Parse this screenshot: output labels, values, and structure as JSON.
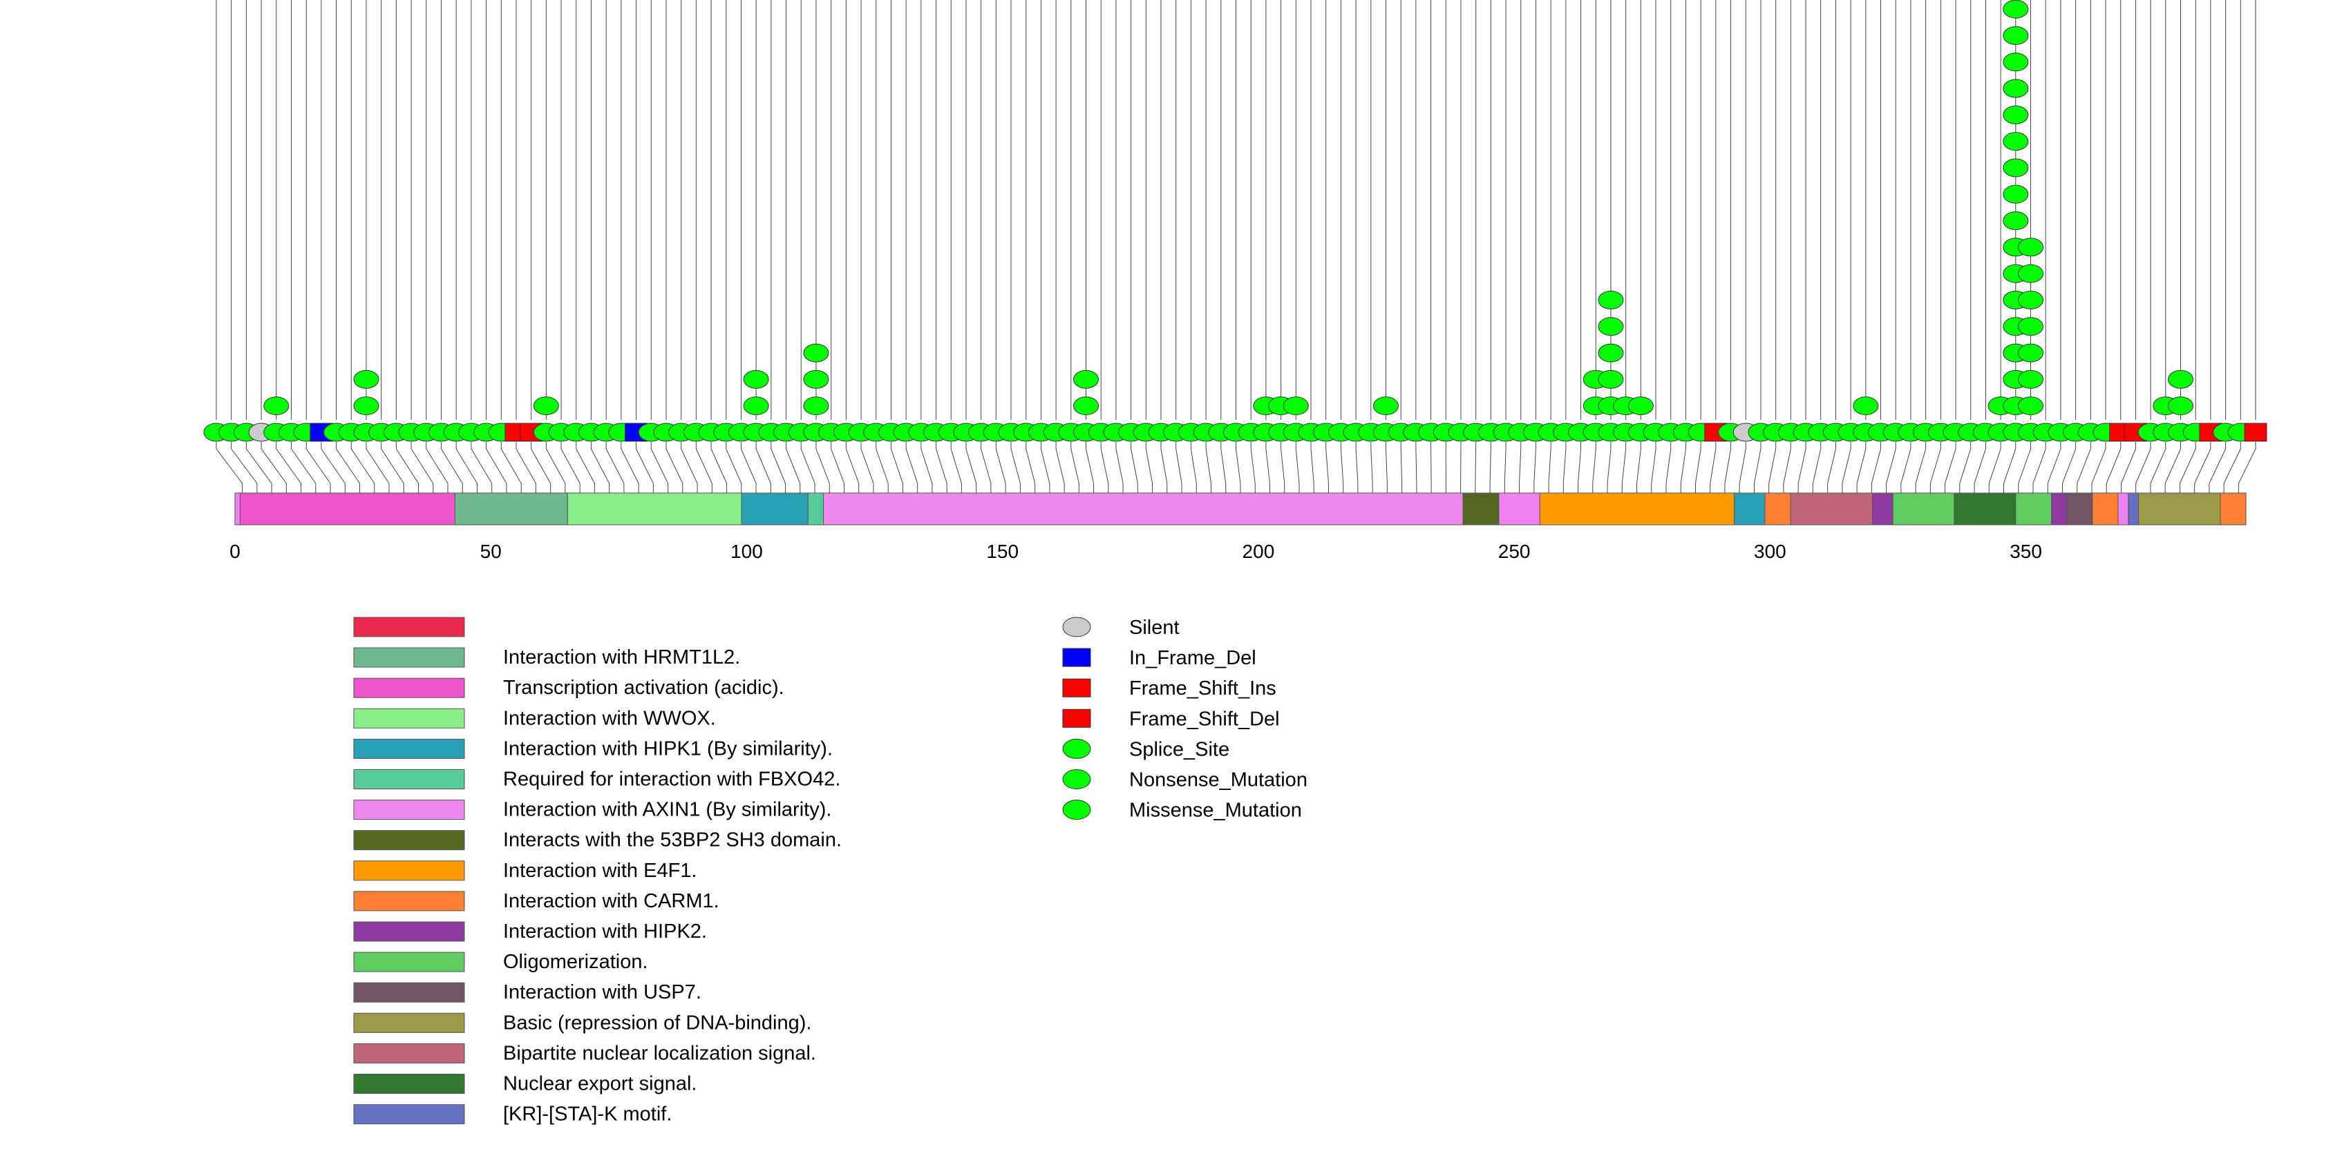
{
  "colors": {
    "stem": "#444444",
    "protein_track": "#ee82ee",
    "mutation_green": "#00ff00",
    "silent_gray": "#cccccc",
    "inframe_blue": "#0000ff",
    "frameshift_red": "#ff0000"
  },
  "chart_data": {
    "type": "lollipop",
    "title": "",
    "xlabel": "",
    "ylabel": "",
    "xlim": [
      0,
      393
    ],
    "x_ticks": [
      0,
      50,
      100,
      150,
      200,
      250,
      300,
      350
    ],
    "protein_length": 393,
    "domains": [
      {
        "name": "Transcription activation (acidic).",
        "start": 1,
        "end": 43,
        "color": "#ee55cc"
      },
      {
        "name": "Interaction with HRMT1L2.",
        "start": 43,
        "end": 65,
        "color": "#70b890"
      },
      {
        "name": "Interaction with WWOX.",
        "start": 65,
        "end": 99,
        "color": "#88ee88"
      },
      {
        "name": "Interaction with HIPK1 (By similarity).",
        "start": 99,
        "end": 112,
        "color": "#2aa0b4"
      },
      {
        "name": "Required for interaction with FBXO42.",
        "start": 112,
        "end": 115,
        "color": "#55cc99"
      },
      {
        "name": "Interaction with AXIN1 (By similarity).",
        "start": 115,
        "end": 240,
        "color": "#ee88ee"
      },
      {
        "name": "Interacts with the 53BP2 SH3 domain.",
        "start": 240,
        "end": 247,
        "color": "#556622"
      },
      {
        "name": "Interaction with E4F1.",
        "start": 255,
        "end": 293,
        "color": "#ff9900"
      },
      {
        "name": "Interaction with HIPK1 (By similarity).",
        "start": 293,
        "end": 299,
        "color": "#2aa0b4"
      },
      {
        "name": "Interaction with CARM1.",
        "start": 299,
        "end": 304,
        "color": "#ff8033"
      },
      {
        "name": "Bipartite nuclear localization signal.",
        "start": 304,
        "end": 320,
        "color": "#c0657a"
      },
      {
        "name": "Interaction with HIPK2.",
        "start": 320,
        "end": 324,
        "color": "#8e3a9e"
      },
      {
        "name": "Oligomerization.",
        "start": 324,
        "end": 336,
        "color": "#5fcc5f"
      },
      {
        "name": "Nuclear export signal.",
        "start": 336,
        "end": 348,
        "color": "#337733"
      },
      {
        "name": "Oligomerization.",
        "start": 348,
        "end": 355,
        "color": "#5fcc5f"
      },
      {
        "name": "Interaction with HIPK2.",
        "start": 355,
        "end": 358,
        "color": "#8e3a9e"
      },
      {
        "name": "Interaction with USP7.",
        "start": 358,
        "end": 363,
        "color": "#735566"
      },
      {
        "name": "Interaction with CARM1.",
        "start": 363,
        "end": 368,
        "color": "#ff8033"
      },
      {
        "name": "[KR]-[STA]-K motif.",
        "start": 370,
        "end": 372,
        "color": "#6670c0"
      },
      {
        "name": "Basic (repression of DNA-binding).",
        "start": 372,
        "end": 388,
        "color": "#9a9a48"
      },
      {
        "name": "Interaction with CARM1.",
        "start": 388,
        "end": 393,
        "color": "#ff8033"
      }
    ],
    "column_counts": [
      1,
      1,
      1,
      1,
      2,
      1,
      1,
      1,
      1,
      1,
      3,
      1,
      1,
      1,
      1,
      1,
      1,
      1,
      1,
      1,
      1,
      1,
      2,
      1,
      1,
      1,
      1,
      1,
      1,
      1,
      1,
      1,
      1,
      1,
      1,
      1,
      3,
      1,
      1,
      1,
      4,
      1,
      1,
      1,
      1,
      1,
      1,
      1,
      1,
      1,
      1,
      1,
      1,
      1,
      1,
      1,
      1,
      1,
      3,
      1,
      1,
      1,
      1,
      1,
      1,
      1,
      1,
      1,
      1,
      1,
      2,
      2,
      2,
      1,
      1,
      1,
      1,
      1,
      2,
      1,
      1,
      1,
      1,
      1,
      1,
      1,
      1,
      1,
      1,
      1,
      1,
      1,
      3,
      6,
      2,
      2,
      1,
      1,
      1,
      1,
      1,
      1,
      1,
      1,
      1,
      1,
      1,
      1,
      1,
      1,
      2,
      1,
      1,
      1,
      1,
      1,
      1,
      1,
      1,
      2,
      17,
      8,
      1,
      1,
      1,
      1,
      1,
      1,
      1,
      1,
      2,
      3,
      1,
      1,
      1,
      1,
      1
    ],
    "column_types": [
      "Missense_Mutation",
      "Missense_Mutation",
      "Missense_Mutation",
      "Silent",
      "Missense_Mutation",
      "Missense_Mutation",
      "Missense_Mutation",
      "In_Frame_Del",
      "Missense_Mutation",
      "Missense_Mutation",
      "Missense_Mutation",
      "Missense_Mutation",
      "Missense_Mutation",
      "Missense_Mutation",
      "Missense_Mutation",
      "Missense_Mutation",
      "Missense_Mutation",
      "Missense_Mutation",
      "Missense_Mutation",
      "Missense_Mutation",
      "Frame_Shift_Del",
      "Frame_Shift_Ins",
      "Missense_Mutation",
      "Missense_Mutation",
      "Missense_Mutation",
      "Missense_Mutation",
      "Missense_Mutation",
      "Missense_Mutation",
      "In_Frame_Del",
      "Missense_Mutation",
      "Missense_Mutation",
      "Missense_Mutation",
      "Missense_Mutation",
      "Missense_Mutation",
      "Missense_Mutation",
      "Missense_Mutation",
      "Missense_Mutation",
      "Missense_Mutation",
      "Missense_Mutation",
      "Missense_Mutation",
      "Missense_Mutation",
      "Missense_Mutation",
      "Missense_Mutation",
      "Missense_Mutation",
      "Missense_Mutation",
      "Missense_Mutation",
      "Missense_Mutation",
      "Missense_Mutation",
      "Missense_Mutation",
      "Missense_Mutation",
      "Missense_Mutation",
      "Missense_Mutation",
      "Missense_Mutation",
      "Missense_Mutation",
      "Missense_Mutation",
      "Missense_Mutation",
      "Missense_Mutation",
      "Missense_Mutation",
      "Missense_Mutation",
      "Missense_Mutation",
      "Missense_Mutation",
      "Missense_Mutation",
      "Missense_Mutation",
      "Missense_Mutation",
      "Missense_Mutation",
      "Missense_Mutation",
      "Missense_Mutation",
      "Missense_Mutation",
      "Missense_Mutation",
      "Missense_Mutation",
      "Missense_Mutation",
      "Missense_Mutation",
      "Missense_Mutation",
      "Missense_Mutation",
      "Missense_Mutation",
      "Missense_Mutation",
      "Missense_Mutation",
      "Missense_Mutation",
      "Missense_Mutation",
      "Missense_Mutation",
      "Missense_Mutation",
      "Missense_Mutation",
      "Missense_Mutation",
      "Missense_Mutation",
      "Missense_Mutation",
      "Missense_Mutation",
      "Missense_Mutation",
      "Missense_Mutation",
      "Missense_Mutation",
      "Missense_Mutation",
      "Missense_Mutation",
      "Missense_Mutation",
      "Missense_Mutation",
      "Missense_Mutation",
      "Missense_Mutation",
      "Missense_Mutation",
      "Missense_Mutation",
      "Missense_Mutation",
      "Missense_Mutation",
      "Missense_Mutation",
      "Frame_Shift_Del",
      "Missense_Mutation",
      "Silent",
      "Missense_Mutation",
      "Missense_Mutation",
      "Missense_Mutation",
      "Missense_Mutation",
      "Missense_Mutation",
      "Missense_Mutation",
      "Missense_Mutation",
      "Missense_Mutation",
      "Missense_Mutation",
      "Missense_Mutation",
      "Missense_Mutation",
      "Missense_Mutation",
      "Missense_Mutation",
      "Missense_Mutation",
      "Missense_Mutation",
      "Missense_Mutation",
      "Missense_Mutation",
      "Missense_Mutation",
      "Missense_Mutation",
      "Missense_Mutation",
      "Missense_Mutation",
      "Missense_Mutation",
      "Missense_Mutation",
      "Missense_Mutation",
      "Frame_Shift_Del",
      "Frame_Shift_Ins",
      "Missense_Mutation",
      "Missense_Mutation",
      "Missense_Mutation",
      "Missense_Mutation",
      "Frame_Shift_Del",
      "Missense_Mutation",
      "Missense_Mutation",
      "Frame_Shift_Del"
    ],
    "domain_legend": [
      {
        "label": "",
        "color": "#e8284a"
      },
      {
        "label": "Interaction with HRMT1L2.",
        "color": "#70b890"
      },
      {
        "label": "Transcription activation (acidic).",
        "color": "#ee55cc"
      },
      {
        "label": "Interaction with WWOX.",
        "color": "#88ee88"
      },
      {
        "label": "Interaction with HIPK1 (By similarity).",
        "color": "#2aa0b4"
      },
      {
        "label": "Required for interaction with FBXO42.",
        "color": "#55cc99"
      },
      {
        "label": "Interaction with AXIN1 (By similarity).",
        "color": "#ee88ee"
      },
      {
        "label": "Interacts with the 53BP2 SH3 domain.",
        "color": "#556622"
      },
      {
        "label": "Interaction with E4F1.",
        "color": "#ff9900"
      },
      {
        "label": "Interaction with CARM1.",
        "color": "#ff8033"
      },
      {
        "label": "Interaction with HIPK2.",
        "color": "#8e3a9e"
      },
      {
        "label": "Oligomerization.",
        "color": "#5fcc5f"
      },
      {
        "label": "Interaction with USP7.",
        "color": "#735566"
      },
      {
        "label": "Basic (repression of DNA-binding).",
        "color": "#9a9a48"
      },
      {
        "label": "Bipartite nuclear localization signal.",
        "color": "#c0657a"
      },
      {
        "label": "Nuclear export signal.",
        "color": "#337733"
      },
      {
        "label": "[KR]-[STA]-K motif.",
        "color": "#6670c0"
      }
    ],
    "mutation_legend": [
      {
        "label": "Silent",
        "shape": "ellipse",
        "color": "#cccccc"
      },
      {
        "label": "In_Frame_Del",
        "shape": "rect",
        "color": "#0000ff"
      },
      {
        "label": "Frame_Shift_Ins",
        "shape": "rect",
        "color": "#ff0000"
      },
      {
        "label": "Frame_Shift_Del",
        "shape": "rect",
        "color": "#ff0000"
      },
      {
        "label": "Splice_Site",
        "shape": "ellipse",
        "color": "#00ff00"
      },
      {
        "label": "Nonsense_Mutation",
        "shape": "ellipse",
        "color": "#00ff00"
      },
      {
        "label": "Missense_Mutation",
        "shape": "ellipse",
        "color": "#00ff00"
      }
    ]
  }
}
